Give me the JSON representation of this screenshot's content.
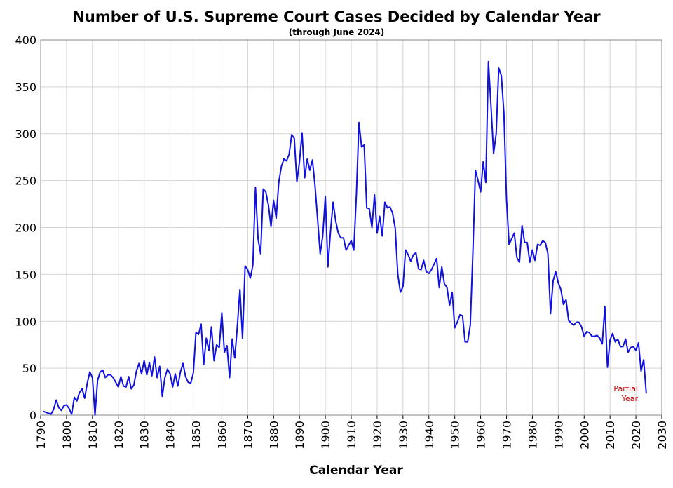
{
  "chart_data": {
    "type": "line",
    "title": "Number of U.S. Supreme Court Cases Decided by Calendar Year",
    "subtitle": "(through June 2024)",
    "xlabel": "Calendar Year",
    "ylabel": "",
    "xlim": [
      1790,
      2030
    ],
    "ylim": [
      0,
      400
    ],
    "x_ticks": [
      1790,
      1800,
      1810,
      1820,
      1830,
      1840,
      1850,
      1860,
      1870,
      1880,
      1890,
      1900,
      1910,
      1920,
      1930,
      1940,
      1950,
      1960,
      1970,
      1980,
      1990,
      2000,
      2010,
      2020,
      2030
    ],
    "y_ticks": [
      0,
      50,
      100,
      150,
      200,
      250,
      300,
      350,
      400
    ],
    "grid": true,
    "annotation": [
      "Partial",
      "Year"
    ],
    "colors": {
      "line": "#1010e0",
      "annotation": "#cc0000",
      "grid": "#d4d4d4"
    },
    "series": [
      {
        "x": [
          1791,
          1792,
          1793,
          1794,
          1795,
          1796,
          1797,
          1798,
          1799,
          1800,
          1801,
          1802,
          1803,
          1804,
          1805,
          1806,
          1807,
          1808,
          1809,
          1810,
          1811,
          1812,
          1813,
          1814,
          1815,
          1816,
          1817,
          1818,
          1819,
          1820,
          1821,
          1822,
          1823,
          1824,
          1825,
          1826,
          1827,
          1828,
          1829,
          1830,
          1831,
          1832,
          1833,
          1834,
          1835,
          1836,
          1837,
          1838,
          1839,
          1840,
          1841,
          1842,
          1843,
          1844,
          1845,
          1846,
          1847,
          1848,
          1849,
          1850,
          1851,
          1852,
          1853,
          1854,
          1855,
          1856,
          1857,
          1858,
          1859,
          1860,
          1861,
          1862,
          1863,
          1864,
          1865,
          1866,
          1867,
          1868,
          1869,
          1870,
          1871,
          1872,
          1873,
          1874,
          1875,
          1876,
          1877,
          1878,
          1879,
          1880,
          1881,
          1882,
          1883,
          1884,
          1885,
          1886,
          1887,
          1888,
          1889,
          1890,
          1891,
          1892,
          1893,
          1894,
          1895,
          1896,
          1897,
          1898,
          1899,
          1900,
          1901,
          1902,
          1903,
          1904,
          1905,
          1906,
          1907,
          1908,
          1909,
          1910,
          1911,
          1912,
          1913,
          1914,
          1915,
          1916,
          1917,
          1918,
          1919,
          1920,
          1921,
          1922,
          1923,
          1924,
          1925,
          1926,
          1927,
          1928,
          1929,
          1930,
          1931,
          1932,
          1933,
          1934,
          1935,
          1936,
          1937,
          1938,
          1939,
          1940,
          1941,
          1942,
          1943,
          1944,
          1945,
          1946,
          1947,
          1948,
          1949,
          1950,
          1951,
          1952,
          1953,
          1954,
          1955,
          1956,
          1957,
          1958,
          1959,
          1960,
          1961,
          1962,
          1963,
          1964,
          1965,
          1966,
          1967,
          1968,
          1969,
          1970,
          1971,
          1972,
          1973,
          1974,
          1975,
          1976,
          1977,
          1978,
          1979,
          1980,
          1981,
          1982,
          1983,
          1984,
          1985,
          1986,
          1987,
          1988,
          1989,
          1990,
          1991,
          1992,
          1993,
          1994,
          1995,
          1996,
          1997,
          1998,
          1999,
          2000,
          2001,
          2002,
          2003,
          2004,
          2005,
          2006,
          2007,
          2008,
          2009,
          2010,
          2011,
          2012,
          2013,
          2014,
          2015,
          2016,
          2017,
          2018,
          2019,
          2020,
          2021,
          2022,
          2023,
          2024
        ],
        "values": [
          4,
          3,
          2,
          1,
          6,
          16,
          8,
          5,
          10,
          11,
          7,
          1,
          19,
          15,
          24,
          28,
          18,
          34,
          46,
          40,
          0,
          37,
          46,
          48,
          40,
          43,
          43,
          40,
          35,
          30,
          41,
          31,
          30,
          41,
          28,
          32,
          47,
          55,
          44,
          58,
          43,
          56,
          42,
          62,
          40,
          52,
          20,
          40,
          49,
          44,
          30,
          44,
          31,
          46,
          55,
          41,
          35,
          34,
          45,
          88,
          86,
          97,
          54,
          82,
          69,
          94,
          58,
          75,
          72,
          109,
          67,
          74,
          40,
          81,
          61,
          95,
          134,
          82,
          159,
          155,
          146,
          160,
          243,
          188,
          172,
          241,
          238,
          224,
          201,
          229,
          210,
          248,
          265,
          273,
          271,
          278,
          299,
          295,
          249,
          270,
          301,
          253,
          273,
          261,
          272,
          245,
          209,
          172,
          191,
          233,
          158,
          196,
          227,
          207,
          194,
          189,
          189,
          176,
          181,
          186,
          176,
          235,
          312,
          286,
          288,
          221,
          220,
          200,
          235,
          194,
          212,
          191,
          227,
          221,
          222,
          215,
          199,
          150,
          131,
          137,
          176,
          171,
          164,
          171,
          173,
          156,
          155,
          165,
          153,
          151,
          155,
          161,
          167,
          136,
          158,
          140,
          136,
          117,
          131,
          93,
          99,
          107,
          106,
          78,
          78,
          96,
          173,
          261,
          250,
          238,
          270,
          248,
          377,
          330,
          279,
          300,
          370,
          362,
          322,
          230,
          182,
          188,
          194,
          168,
          163,
          202,
          184,
          184,
          163,
          176,
          165,
          182,
          181,
          186,
          184,
          172,
          108,
          143,
          153,
          141,
          134,
          118,
          123,
          101,
          98,
          96,
          99,
          99,
          94,
          84,
          89,
          88,
          84,
          84,
          85,
          82,
          76,
          116,
          51,
          80,
          87,
          78,
          81,
          73,
          73,
          81,
          67,
          72,
          73,
          69,
          77,
          47,
          59,
          23
        ]
      }
    ]
  }
}
